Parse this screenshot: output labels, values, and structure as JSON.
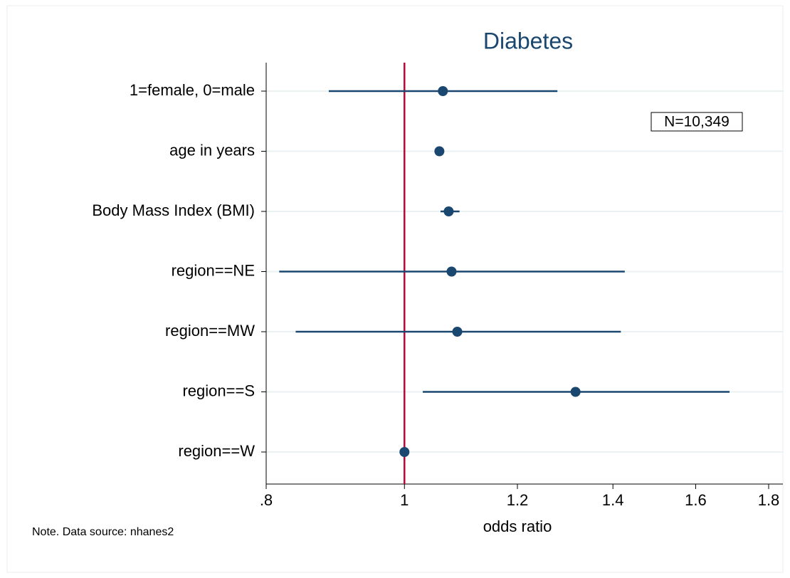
{
  "chart_data": {
    "type": "coefplot",
    "title": "Diabetes",
    "xlabel": "odds ratio",
    "note": "Note. Data source: nhanes2",
    "annotation": "N=10,349",
    "categories": [
      "1=female, 0=male",
      "age in years",
      "Body Mass Index (BMI)",
      "region==NE",
      "region==MW",
      "region==S",
      "region==W"
    ],
    "series": [
      {
        "color": "#1a476f",
        "values": [
          1.064,
          1.058,
          1.074,
          1.079,
          1.089,
          1.318,
          1
        ],
        "ci_lower": [
          0.885,
          1.055,
          1.06,
          0.817,
          0.839,
          1.03,
          null
        ],
        "ci_upper": [
          1.28,
          1.061,
          1.093,
          1.427,
          1.418,
          1.69,
          null
        ]
      }
    ],
    "xscale": "log",
    "xlim": [
      0.8,
      1.8
    ],
    "xticks": [
      {
        "value": 0.8,
        "label": ".8"
      },
      1,
      1.2,
      1.4,
      1.6,
      1.8
    ],
    "xline": 1,
    "xline_color": "#c10534",
    "grid": true
  }
}
